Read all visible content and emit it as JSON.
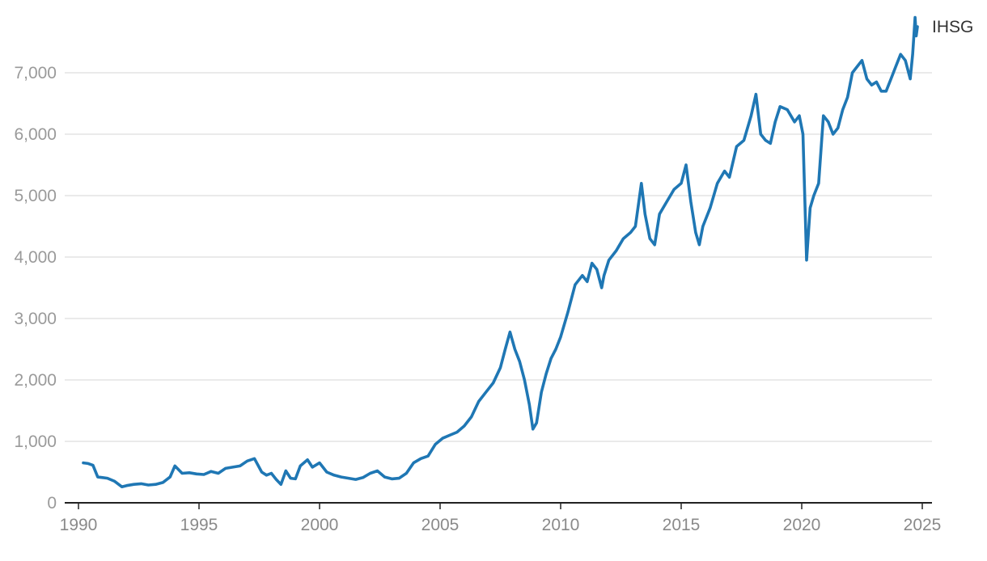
{
  "chart_data": {
    "type": "line",
    "title": "",
    "xlabel": "",
    "ylabel": "",
    "xlim": [
      1990,
      2025
    ],
    "ylim": [
      0,
      7800
    ],
    "x_ticks": [
      1990,
      1995,
      2000,
      2005,
      2010,
      2015,
      2020,
      2025
    ],
    "x_tick_labels": [
      "1990",
      "1995",
      "2000",
      "2005",
      "2010",
      "2015",
      "2020",
      "2025"
    ],
    "y_ticks": [
      0,
      1000,
      2000,
      3000,
      4000,
      5000,
      6000,
      7000
    ],
    "y_tick_labels": [
      "0",
      "1,000",
      "2,000",
      "3,000",
      "4,000",
      "5,000",
      "6,000",
      "7,000"
    ],
    "grid": "horizontal",
    "legend": "none",
    "colors": {
      "line": "#1f77b4",
      "grid": "#e3e3e3",
      "axis": "#222222"
    },
    "series": [
      {
        "name": "IHSG",
        "x": [
          1990.2,
          1990.4,
          1990.6,
          1990.8,
          1991.0,
          1991.2,
          1991.5,
          1991.8,
          1992.0,
          1992.3,
          1992.6,
          1992.9,
          1993.2,
          1993.5,
          1993.8,
          1994.0,
          1994.3,
          1994.6,
          1994.9,
          1995.2,
          1995.5,
          1995.8,
          1996.1,
          1996.4,
          1996.7,
          1997.0,
          1997.3,
          1997.6,
          1997.8,
          1998.0,
          1998.2,
          1998.4,
          1998.6,
          1998.8,
          1999.0,
          1999.2,
          1999.5,
          1999.7,
          2000.0,
          2000.3,
          2000.6,
          2000.9,
          2001.2,
          2001.5,
          2001.8,
          2002.1,
          2002.4,
          2002.7,
          2003.0,
          2003.3,
          2003.6,
          2003.9,
          2004.2,
          2004.5,
          2004.8,
          2005.1,
          2005.4,
          2005.7,
          2006.0,
          2006.3,
          2006.6,
          2006.9,
          2007.2,
          2007.5,
          2007.7,
          2007.9,
          2008.1,
          2008.3,
          2008.5,
          2008.7,
          2008.85,
          2009.0,
          2009.2,
          2009.4,
          2009.6,
          2009.8,
          2010.0,
          2010.3,
          2010.6,
          2010.9,
          2011.1,
          2011.3,
          2011.5,
          2011.7,
          2011.8,
          2012.0,
          2012.3,
          2012.6,
          2012.9,
          2013.1,
          2013.35,
          2013.5,
          2013.7,
          2013.9,
          2014.1,
          2014.4,
          2014.7,
          2015.0,
          2015.2,
          2015.4,
          2015.6,
          2015.75,
          2015.9,
          2016.2,
          2016.5,
          2016.8,
          2017.0,
          2017.3,
          2017.6,
          2017.9,
          2018.1,
          2018.3,
          2018.5,
          2018.7,
          2018.9,
          2019.1,
          2019.4,
          2019.7,
          2019.9,
          2020.05,
          2020.2,
          2020.35,
          2020.5,
          2020.7,
          2020.9,
          2021.1,
          2021.3,
          2021.5,
          2021.7,
          2021.9,
          2022.1,
          2022.3,
          2022.5,
          2022.7,
          2022.9,
          2023.1,
          2023.3,
          2023.5,
          2023.7,
          2023.9,
          2024.1,
          2024.3,
          2024.5,
          2024.6,
          2024.7,
          2024.75,
          2024.8
        ],
        "values": [
          650,
          640,
          610,
          420,
          410,
          400,
          350,
          260,
          280,
          300,
          310,
          290,
          300,
          330,
          420,
          600,
          480,
          490,
          470,
          460,
          510,
          480,
          560,
          580,
          600,
          680,
          720,
          500,
          450,
          480,
          380,
          300,
          520,
          400,
          390,
          600,
          700,
          580,
          650,
          500,
          450,
          420,
          400,
          380,
          410,
          480,
          520,
          420,
          390,
          400,
          480,
          650,
          720,
          760,
          950,
          1050,
          1100,
          1150,
          1250,
          1400,
          1650,
          1800,
          1950,
          2200,
          2500,
          2780,
          2500,
          2300,
          2000,
          1600,
          1200,
          1300,
          1800,
          2100,
          2350,
          2500,
          2700,
          3100,
          3550,
          3700,
          3600,
          3900,
          3800,
          3500,
          3700,
          3950,
          4100,
          4300,
          4400,
          4500,
          5200,
          4700,
          4300,
          4200,
          4700,
          4900,
          5100,
          5200,
          5500,
          4900,
          4400,
          4200,
          4500,
          4800,
          5200,
          5400,
          5300,
          5800,
          5900,
          6300,
          6650,
          6000,
          5900,
          5850,
          6200,
          6450,
          6400,
          6200,
          6300,
          6000,
          3950,
          4800,
          5000,
          5200,
          6300,
          6200,
          6000,
          6100,
          6400,
          6600,
          7000,
          7100,
          7200,
          6900,
          6800,
          6850,
          6700,
          6700,
          6900,
          7100,
          7300,
          7200,
          6900,
          7300,
          7900,
          7600,
          7750
        ]
      }
    ],
    "end_label": "IHSG"
  }
}
